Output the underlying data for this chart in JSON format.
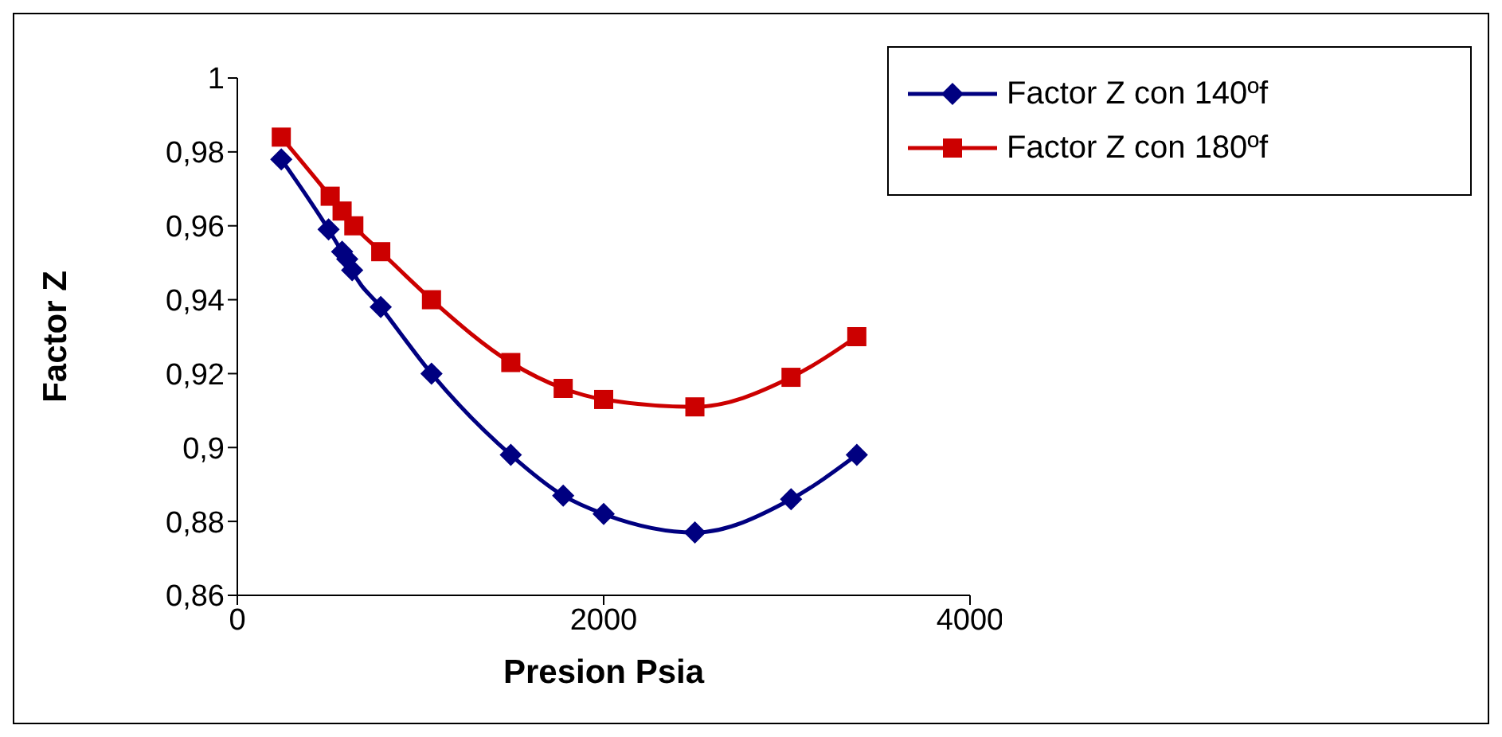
{
  "chart_data": {
    "type": "line",
    "xlabel": "Presion Psia",
    "ylabel": "Factor Z",
    "xlim": [
      0,
      4000
    ],
    "xticks": [
      0,
      2000,
      4000
    ],
    "ylim": [
      0.86,
      1
    ],
    "yticks": [
      {
        "value": 0.86,
        "label": "0,86"
      },
      {
        "value": 0.88,
        "label": "0,88"
      },
      {
        "value": 0.9,
        "label": "0,9"
      },
      {
        "value": 0.92,
        "label": "0,92"
      },
      {
        "value": 0.94,
        "label": "0,94"
      },
      {
        "value": 0.96,
        "label": "0,96"
      },
      {
        "value": 0.98,
        "label": "0,98"
      },
      {
        "value": 1,
        "label": "1"
      }
    ],
    "grid": false,
    "legend": "top right",
    "series": [
      {
        "name": "Factor Z con 140ºf",
        "color": "#000080",
        "marker": "diamond",
        "x": [
          240,
          498,
          572,
          600,
          627,
          783,
          1060,
          1493,
          1779,
          2000,
          2498,
          3023,
          3382
        ],
        "values": [
          0.978,
          0.959,
          0.953,
          0.951,
          0.948,
          0.938,
          0.92,
          0.898,
          0.887,
          0.882,
          0.877,
          0.886,
          0.898
        ]
      },
      {
        "name": "Factor Z con 180ºf",
        "color": "#cc0000",
        "marker": "square",
        "x": [
          240,
          507,
          572,
          636,
          783,
          1060,
          1493,
          1779,
          2000,
          2498,
          3023,
          3382
        ],
        "values": [
          0.984,
          0.968,
          0.964,
          0.96,
          0.953,
          0.94,
          0.923,
          0.916,
          0.913,
          0.911,
          0.919,
          0.93
        ]
      }
    ]
  }
}
